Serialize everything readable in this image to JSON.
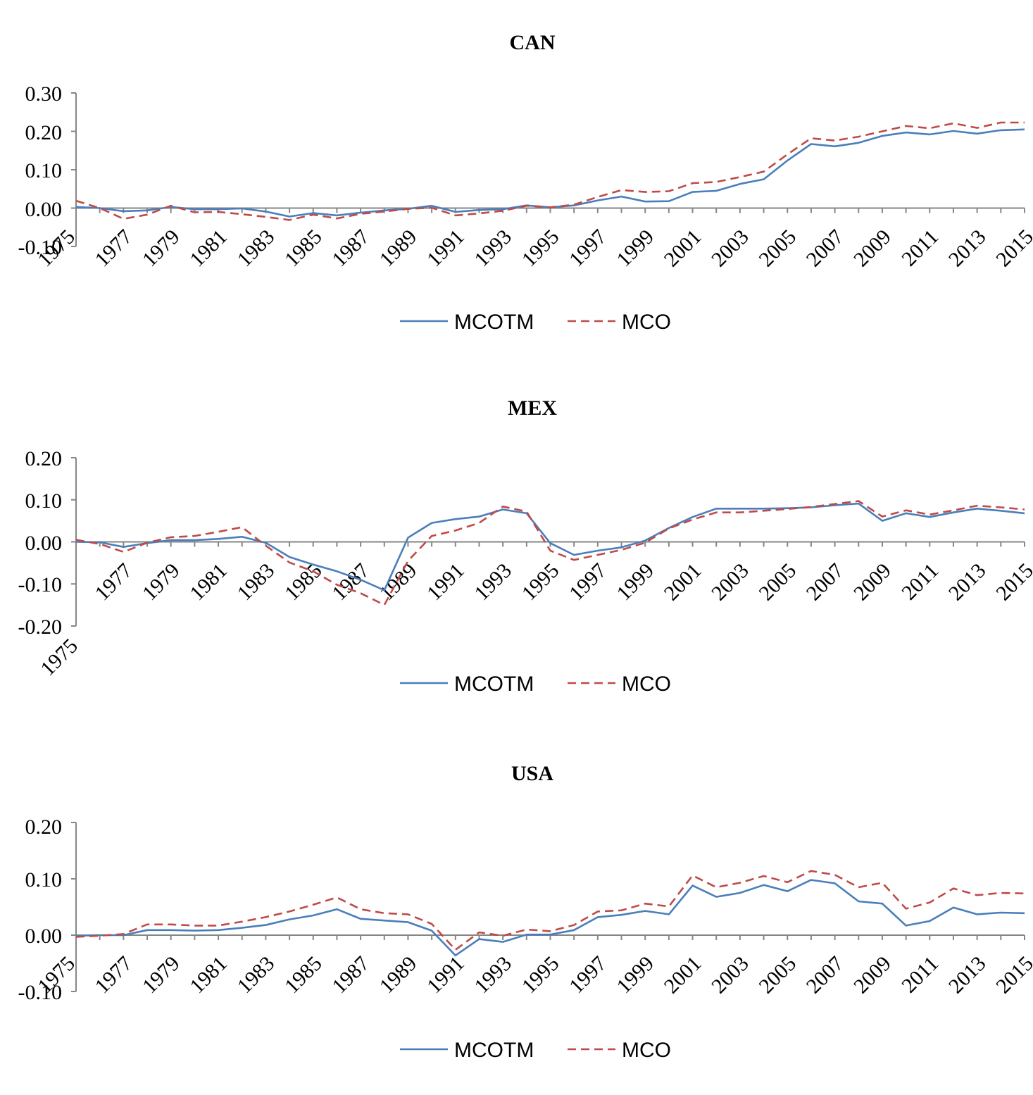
{
  "chart_data": [
    {
      "type": "line",
      "title": "CAN",
      "ylim": [
        -0.1,
        0.3
      ],
      "yticks": [
        "-0.10",
        "0.00",
        "0.10",
        "0.20",
        "0.30"
      ],
      "ytick_values": [
        -0.1,
        0.0,
        0.1,
        0.2,
        0.3
      ],
      "xlim": [
        1975,
        2015
      ],
      "xtick_labels": [
        "1975",
        "1977",
        "1979",
        "1981",
        "1983",
        "1985",
        "1987",
        "1989",
        "1991",
        "1993",
        "1995",
        "1997",
        "1999",
        "2001",
        "2003",
        "2005",
        "2007",
        "2009",
        "2011",
        "2013",
        "2015"
      ],
      "grid": false,
      "legend": "bottom",
      "x": [
        1975,
        1976,
        1977,
        1978,
        1979,
        1980,
        1981,
        1982,
        1983,
        1984,
        1985,
        1986,
        1987,
        1988,
        1989,
        1990,
        1991,
        1992,
        1993,
        1994,
        1995,
        1996,
        1997,
        1998,
        1999,
        2000,
        2001,
        2002,
        2003,
        2004,
        2005,
        2006,
        2007,
        2008,
        2009,
        2010,
        2011,
        2012,
        2013,
        2014,
        2015
      ],
      "series": [
        {
          "name": "MCOTM",
          "color": "#4a7ebb",
          "style": "solid",
          "values": [
            0.003,
            0.0,
            -0.008,
            -0.006,
            0.003,
            -0.003,
            -0.003,
            -0.001,
            -0.009,
            -0.022,
            -0.013,
            -0.019,
            -0.012,
            -0.006,
            -0.002,
            0.006,
            -0.01,
            -0.005,
            -0.003,
            0.007,
            0.002,
            0.007,
            0.02,
            0.03,
            0.017,
            0.018,
            0.042,
            0.045,
            0.063,
            0.075,
            0.124,
            0.167,
            0.161,
            0.17,
            0.188,
            0.197,
            0.192,
            0.201,
            0.194,
            0.203,
            0.205
          ]
        },
        {
          "name": "MCO",
          "color": "#be4b48",
          "style": "dashed",
          "values": [
            0.019,
            0.0,
            -0.028,
            -0.017,
            0.006,
            -0.011,
            -0.01,
            -0.016,
            -0.023,
            -0.031,
            -0.017,
            -0.027,
            -0.015,
            -0.009,
            -0.002,
            0.001,
            -0.019,
            -0.014,
            -0.007,
            0.006,
            0.002,
            0.009,
            0.029,
            0.047,
            0.042,
            0.044,
            0.065,
            0.068,
            0.081,
            0.095,
            0.14,
            0.182,
            0.176,
            0.186,
            0.2,
            0.214,
            0.208,
            0.221,
            0.209,
            0.223,
            0.223
          ]
        }
      ]
    },
    {
      "type": "line",
      "title": "MEX",
      "ylim": [
        -0.2,
        0.2
      ],
      "yticks": [
        "-0.20",
        "-0.10",
        "0.00",
        "0.10",
        "0.20"
      ],
      "ytick_values": [
        -0.2,
        -0.1,
        0.0,
        0.1,
        0.2
      ],
      "xlim": [
        1975,
        2015
      ],
      "xtick_labels": [
        "1975",
        "1977",
        "1979",
        "1981",
        "1983",
        "1985",
        "1987",
        "1989",
        "1991",
        "1993",
        "1995",
        "1997",
        "1999",
        "2001",
        "2003",
        "2005",
        "2007",
        "2009",
        "2011",
        "2013",
        "2015"
      ],
      "grid": false,
      "legend": "bottom",
      "x": [
        1975,
        1976,
        1977,
        1978,
        1979,
        1980,
        1981,
        1982,
        1983,
        1984,
        1985,
        1986,
        1987,
        1988,
        1989,
        1990,
        1991,
        1992,
        1993,
        1994,
        1995,
        1996,
        1997,
        1998,
        1999,
        2000,
        2001,
        2002,
        2003,
        2004,
        2005,
        2006,
        2007,
        2008,
        2009,
        2010,
        2011,
        2012,
        2013,
        2014,
        2015
      ],
      "series": [
        {
          "name": "MCOTM",
          "color": "#4a7ebb",
          "style": "solid",
          "values": [
            0.0,
            -0.001,
            -0.012,
            -0.003,
            0.004,
            0.004,
            0.007,
            0.012,
            -0.002,
            -0.036,
            -0.054,
            -0.07,
            -0.09,
            -0.115,
            0.01,
            0.045,
            0.054,
            0.06,
            0.077,
            0.068,
            -0.003,
            -0.031,
            -0.021,
            -0.013,
            0.003,
            0.033,
            0.059,
            0.079,
            0.079,
            0.079,
            0.08,
            0.082,
            0.087,
            0.091,
            0.05,
            0.068,
            0.059,
            0.07,
            0.079,
            0.074,
            0.068
          ]
        },
        {
          "name": "MCO",
          "color": "#be4b48",
          "style": "dashed",
          "values": [
            0.005,
            -0.005,
            -0.024,
            -0.002,
            0.011,
            0.014,
            0.024,
            0.035,
            -0.009,
            -0.049,
            -0.07,
            -0.102,
            -0.122,
            -0.15,
            -0.045,
            0.014,
            0.027,
            0.045,
            0.084,
            0.072,
            -0.021,
            -0.043,
            -0.031,
            -0.019,
            -0.002,
            0.032,
            0.053,
            0.07,
            0.07,
            0.074,
            0.078,
            0.083,
            0.09,
            0.097,
            0.06,
            0.075,
            0.065,
            0.075,
            0.086,
            0.082,
            0.077
          ]
        }
      ]
    },
    {
      "type": "line",
      "title": "USA",
      "ylim": [
        -0.1,
        0.2
      ],
      "yticks": [
        "-0.10",
        "0.00",
        "0.10",
        "0.20"
      ],
      "ytick_values": [
        -0.1,
        0.0,
        0.1,
        0.2
      ],
      "xlim": [
        1975,
        2015
      ],
      "xtick_labels": [
        "1975",
        "1977",
        "1979",
        "1981",
        "1983",
        "1985",
        "1987",
        "1989",
        "1991",
        "1993",
        "1995",
        "1997",
        "1999",
        "2001",
        "2003",
        "2005",
        "2007",
        "2009",
        "2011",
        "2013",
        "2015"
      ],
      "grid": false,
      "legend": "bottom",
      "x": [
        1975,
        1976,
        1977,
        1978,
        1979,
        1980,
        1981,
        1982,
        1983,
        1984,
        1985,
        1986,
        1987,
        1988,
        1989,
        1990,
        1991,
        1992,
        1993,
        1994,
        1995,
        1996,
        1997,
        1998,
        1999,
        2000,
        2001,
        2002,
        2003,
        2004,
        2005,
        2006,
        2007,
        2008,
        2009,
        2010,
        2011,
        2012,
        2013,
        2014,
        2015
      ],
      "series": [
        {
          "name": "MCOTM",
          "color": "#4a7ebb",
          "style": "solid",
          "values": [
            -0.001,
            0.0,
            0.0,
            0.009,
            0.009,
            0.008,
            0.009,
            0.013,
            0.018,
            0.028,
            0.035,
            0.046,
            0.029,
            0.026,
            0.023,
            0.008,
            -0.036,
            -0.007,
            -0.012,
            0.001,
            0.001,
            0.009,
            0.032,
            0.036,
            0.043,
            0.037,
            0.088,
            0.068,
            0.075,
            0.089,
            0.078,
            0.098,
            0.092,
            0.06,
            0.056,
            0.017,
            0.025,
            0.049,
            0.037,
            0.04,
            0.039
          ]
        },
        {
          "name": "MCO",
          "color": "#be4b48",
          "style": "dashed",
          "values": [
            -0.003,
            -0.001,
            0.002,
            0.019,
            0.019,
            0.017,
            0.017,
            0.024,
            0.032,
            0.042,
            0.054,
            0.067,
            0.046,
            0.039,
            0.037,
            0.02,
            -0.026,
            0.005,
            -0.001,
            0.01,
            0.007,
            0.018,
            0.042,
            0.044,
            0.056,
            0.051,
            0.106,
            0.085,
            0.093,
            0.105,
            0.094,
            0.114,
            0.107,
            0.085,
            0.093,
            0.047,
            0.058,
            0.083,
            0.071,
            0.075,
            0.074
          ]
        }
      ]
    }
  ]
}
